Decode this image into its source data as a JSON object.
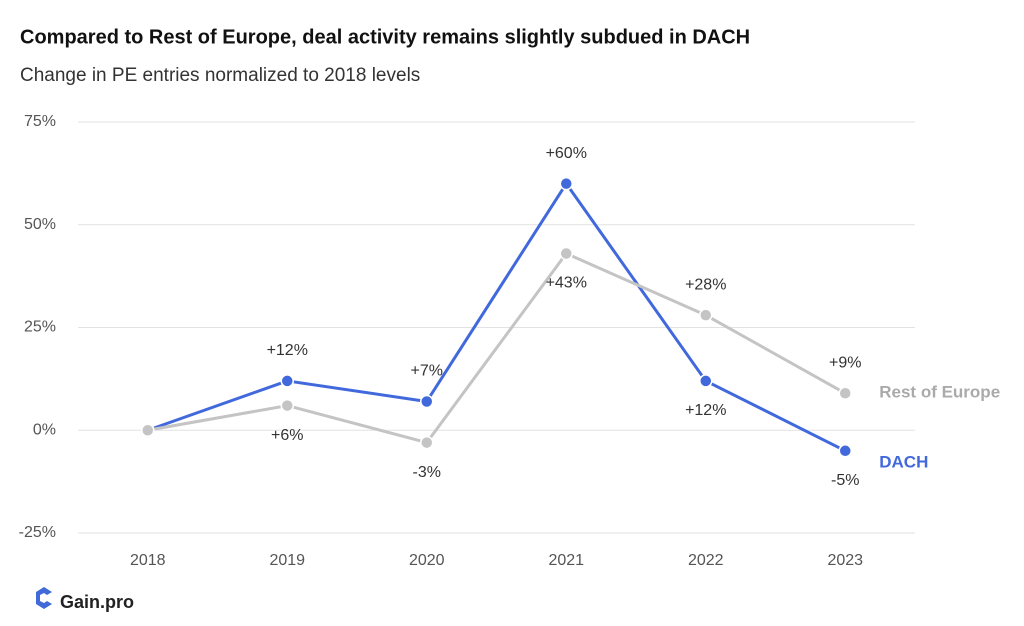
{
  "chart_data": {
    "type": "line",
    "title": "Compared to Rest of Europe, deal activity remains slightly subdued in DACH",
    "subtitle": "Change in PE entries normalized to 2018 levels",
    "categories": [
      "2018",
      "2019",
      "2020",
      "2021",
      "2022",
      "2023"
    ],
    "series": [
      {
        "name": "DACH",
        "color": "#4169dc",
        "values": [
          0,
          12,
          7,
          60,
          12,
          -5
        ],
        "value_labels": [
          null,
          "+12%",
          "+7%",
          "+60%",
          "+12%",
          "-5%"
        ]
      },
      {
        "name": "Rest of Europe",
        "color": "#c4c4c4",
        "values": [
          0,
          6,
          -3,
          43,
          28,
          9
        ],
        "value_labels": [
          null,
          "+6%",
          "-3%",
          "+43%",
          "+28%",
          "+9%"
        ]
      }
    ],
    "ylim": [
      -25,
      75
    ],
    "yticks": [
      {
        "value": -25,
        "label": "-25%"
      },
      {
        "value": 0,
        "label": "0%"
      },
      {
        "value": 25,
        "label": "25%"
      },
      {
        "value": 50,
        "label": "50%"
      },
      {
        "value": 75,
        "label": "75%"
      }
    ],
    "grid": true
  },
  "brand": "Gain.pro"
}
